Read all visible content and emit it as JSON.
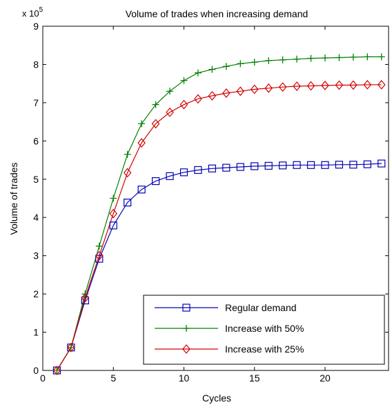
{
  "chart_data": {
    "type": "line",
    "title": "Volume of trades when increasing demand",
    "xlabel": "Cycles",
    "ylabel": "Volume of trades",
    "y_multiplier_label": "x 10",
    "y_multiplier_exponent": "5",
    "xlim": [
      0,
      24.5
    ],
    "ylim": [
      0,
      9
    ],
    "xticks": [
      0,
      5,
      10,
      15,
      20
    ],
    "yticks": [
      0,
      1,
      2,
      3,
      4,
      5,
      6,
      7,
      8,
      9
    ],
    "grid": false,
    "legend_position": "bottom-right",
    "x": [
      1,
      2,
      3,
      4,
      5,
      6,
      7,
      8,
      9,
      10,
      11,
      12,
      13,
      14,
      15,
      16,
      17,
      18,
      19,
      20,
      21,
      22,
      23,
      24
    ],
    "series": [
      {
        "name": "Regular demand",
        "color": "#0000b4",
        "marker": "square",
        "values": [
          0,
          0.6,
          1.83,
          2.92,
          3.79,
          4.39,
          4.73,
          4.95,
          5.08,
          5.18,
          5.24,
          5.28,
          5.3,
          5.32,
          5.34,
          5.35,
          5.36,
          5.37,
          5.37,
          5.37,
          5.38,
          5.38,
          5.39,
          5.41
        ]
      },
      {
        "name": "Increase with 50%",
        "color": "#008000",
        "marker": "plus",
        "values": [
          0,
          0.6,
          2.0,
          3.25,
          4.5,
          5.65,
          6.45,
          6.95,
          7.3,
          7.58,
          7.78,
          7.87,
          7.95,
          8.02,
          8.06,
          8.1,
          8.12,
          8.14,
          8.16,
          8.17,
          8.18,
          8.19,
          8.2,
          8.2
        ]
      },
      {
        "name": "Increase with 25%",
        "color": "#d40000",
        "marker": "diamond",
        "values": [
          0,
          0.6,
          1.9,
          3.0,
          4.1,
          5.17,
          5.95,
          6.45,
          6.75,
          6.95,
          7.1,
          7.18,
          7.25,
          7.3,
          7.35,
          7.38,
          7.41,
          7.43,
          7.44,
          7.45,
          7.46,
          7.46,
          7.47,
          7.47
        ]
      }
    ]
  }
}
